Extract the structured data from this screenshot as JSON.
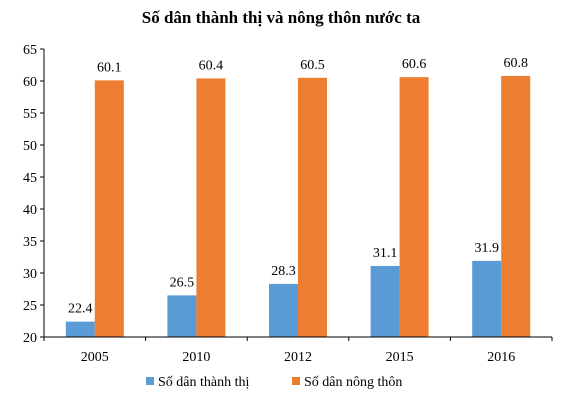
{
  "chart_data": {
    "type": "bar",
    "title": "Số dân thành thị và nông thôn nước ta",
    "xlabel": "",
    "ylabel": "",
    "categories": [
      "2005",
      "2010",
      "2012",
      "2015",
      "2016"
    ],
    "series": [
      {
        "name": "Số dân thành thị",
        "values": [
          22.4,
          26.5,
          28.3,
          31.1,
          31.9
        ],
        "color": "#5b9bd5"
      },
      {
        "name": "Số dân nông thôn",
        "values": [
          60.1,
          60.4,
          60.5,
          60.6,
          60.8
        ],
        "color": "#ed7d31"
      }
    ],
    "data_labels": [
      [
        "22.4",
        "26.5",
        "28.3",
        "31.1",
        "31.9"
      ],
      [
        "60.1",
        "60.4",
        "60.5",
        "60.6",
        "60.8"
      ]
    ],
    "ylim": [
      20,
      65
    ],
    "yticks": [
      20,
      25,
      30,
      35,
      40,
      45,
      50,
      55,
      60,
      65
    ],
    "grid": false,
    "legend_position": "bottom"
  }
}
